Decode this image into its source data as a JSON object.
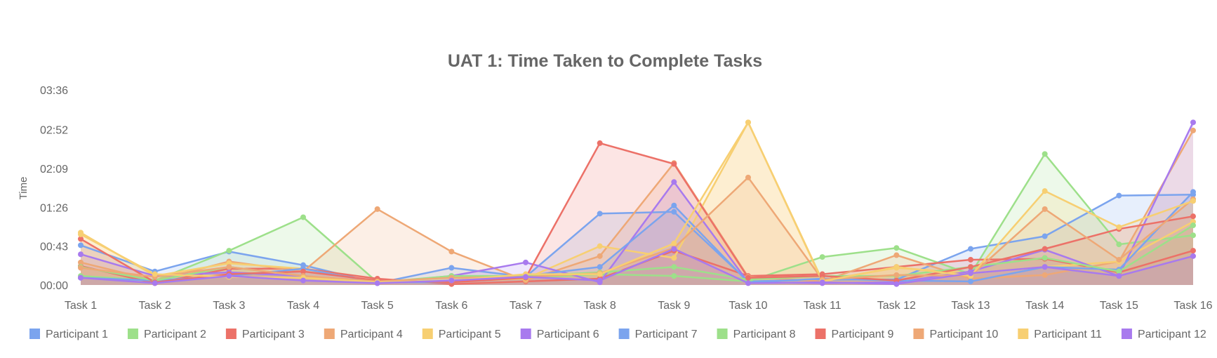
{
  "chart_data": {
    "type": "area",
    "title": "UAT 1: Time Taken to Complete Tasks",
    "xlabel": "",
    "ylabel": "Time",
    "categories": [
      "Task 1",
      "Task 2",
      "Task 3",
      "Task 4",
      "Task 5",
      "Task 6",
      "Task 7",
      "Task 8",
      "Task 9",
      "Task 10",
      "Task 11",
      "Task 12",
      "Task 13",
      "Task 14",
      "Task 15",
      "Task 16"
    ],
    "y_ticks": [
      "00:00",
      "00:43",
      "01:26",
      "02:09",
      "02:52",
      "03:36"
    ],
    "y_tick_seconds": [
      0,
      43,
      86,
      129,
      172,
      216
    ],
    "ylim_seconds": [
      0,
      216
    ],
    "legend_position": "bottom",
    "grid": false,
    "series": [
      {
        "name": "Participant 1",
        "color": "#7BA4EE",
        "values": [
          44,
          15,
          37,
          22,
          2,
          19,
          9,
          79,
          81,
          4,
          6,
          6,
          40,
          54,
          99,
          100
        ]
      },
      {
        "name": "Participant 2",
        "color": "#9DE08A",
        "values": [
          10,
          5,
          38,
          75,
          3,
          5,
          8,
          12,
          10,
          4,
          31,
          41,
          12,
          145,
          45,
          55
        ]
      },
      {
        "name": "Participant 3",
        "color": "#EC7168",
        "values": [
          21,
          2,
          18,
          18,
          7,
          1,
          4,
          7,
          38,
          10,
          12,
          20,
          28,
          29,
          14,
          38
        ]
      },
      {
        "name": "Participant 4",
        "color": "#EEA876",
        "values": [
          25,
          5,
          26,
          15,
          84,
          37,
          5,
          32,
          135,
          9,
          4,
          33,
          7,
          11,
          26,
          171
        ]
      },
      {
        "name": "Participant 5",
        "color": "#F7CF72",
        "values": [
          58,
          10,
          24,
          18,
          3,
          4,
          7,
          43,
          30,
          180,
          5,
          19,
          13,
          20,
          26,
          70
        ]
      },
      {
        "name": "Participant 6",
        "color": "#A87AEE",
        "values": [
          34,
          10,
          14,
          10,
          2,
          10,
          25,
          3,
          114,
          3,
          2,
          3,
          15,
          39,
          10,
          180
        ]
      },
      {
        "name": "Participant 7",
        "color": "#7BA4EE",
        "values": [
          8,
          5,
          10,
          18,
          3,
          3,
          10,
          20,
          88,
          3,
          7,
          5,
          4,
          20,
          17,
          103
        ]
      },
      {
        "name": "Participant 8",
        "color": "#9DE08A",
        "values": [
          20,
          5,
          20,
          10,
          3,
          10,
          10,
          14,
          20,
          6,
          10,
          10,
          20,
          30,
          15,
          66
        ]
      },
      {
        "name": "Participant 9",
        "color": "#EC7168",
        "values": [
          51,
          3,
          12,
          15,
          5,
          3,
          8,
          157,
          134,
          8,
          10,
          5,
          20,
          40,
          62,
          76
        ]
      },
      {
        "name": "Participant 10",
        "color": "#EEA876",
        "values": [
          19,
          9,
          20,
          10,
          4,
          8,
          9,
          13,
          41,
          119,
          6,
          11,
          10,
          84,
          28,
          95
        ]
      },
      {
        "name": "Participant 11",
        "color": "#F7CF72",
        "values": [
          56,
          12,
          9,
          8,
          3,
          5,
          12,
          12,
          46,
          180,
          4,
          20,
          10,
          104,
          64,
          93
        ]
      },
      {
        "name": "Participant 12",
        "color": "#A87AEE",
        "values": [
          8,
          2,
          10,
          5,
          2,
          5,
          9,
          5,
          40,
          2,
          3,
          1,
          13,
          20,
          10,
          32
        ]
      }
    ]
  }
}
